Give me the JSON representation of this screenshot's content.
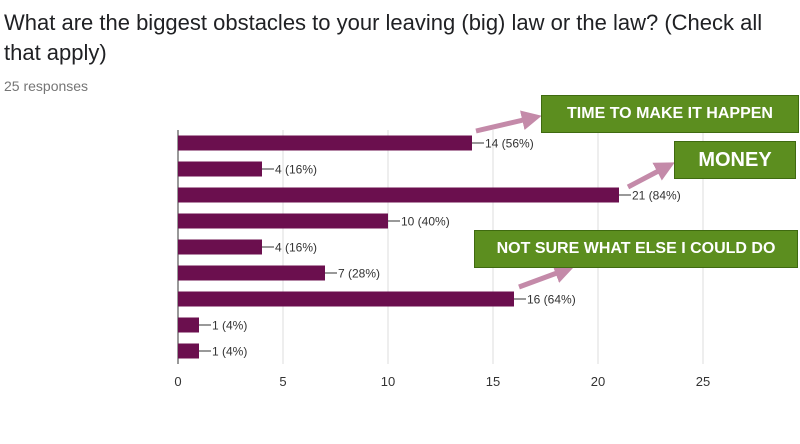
{
  "form": {
    "question": "What are the biggest obstacles to your leaving (big) law or the law? (Check all that apply)",
    "responses": "25 responses"
  },
  "annotations": [
    {
      "text": "TIME TO MAKE IT HAPPEN"
    },
    {
      "text": "MONEY"
    },
    {
      "text": "NOT SURE WHAT ELSE I COULD DO"
    }
  ],
  "colors": {
    "bar": "#6b0f4e",
    "callout_bg": "#5c8e1f",
    "arrow": "#c48aa9",
    "grid": "#dddddd",
    "axis": "#333333",
    "label": "#333333"
  },
  "chart_data": {
    "type": "bar",
    "orientation": "horizontal",
    "values": [
      14,
      4,
      21,
      10,
      4,
      7,
      16,
      1,
      1
    ],
    "data_labels": [
      "14 (56%)",
      "4 (16%)",
      "21 (84%)",
      "10 (40%)",
      "4 (16%)",
      "7 (28%)",
      "16 (64%)",
      "1 (4%)",
      "1 (4%)"
    ],
    "xlim": [
      0,
      25
    ],
    "xticks": [
      0,
      5,
      10,
      15,
      20,
      25
    ],
    "grid": true
  }
}
